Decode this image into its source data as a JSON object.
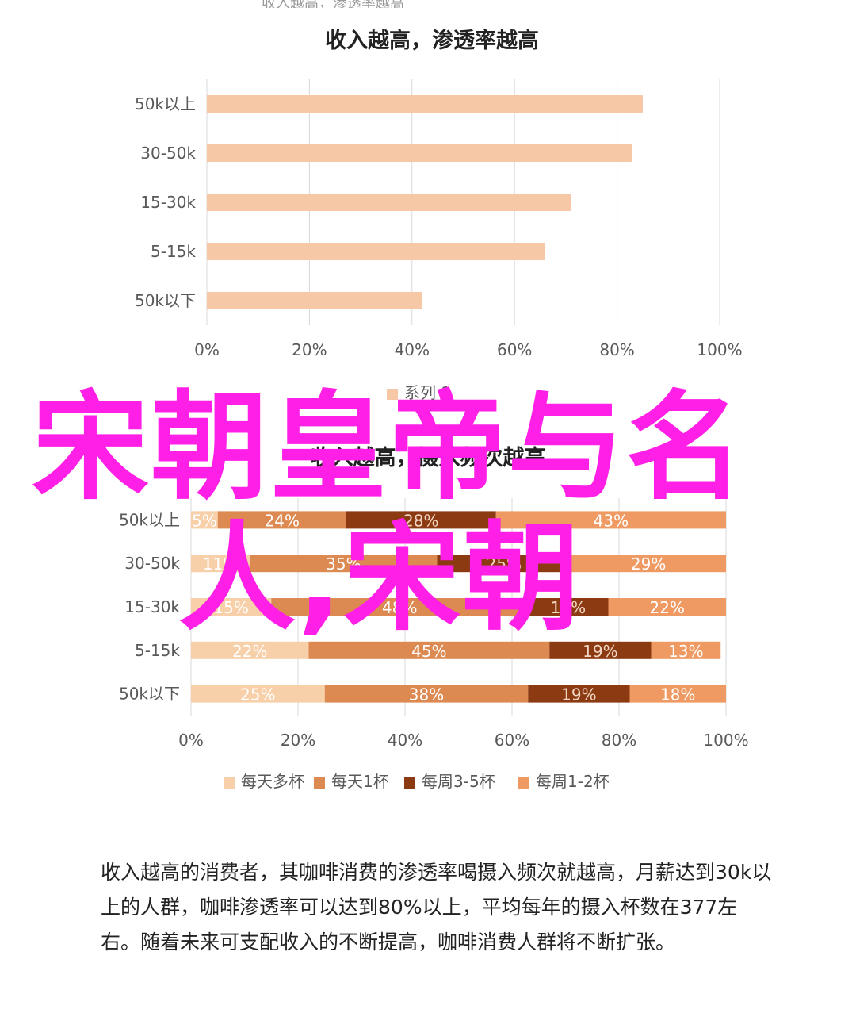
{
  "page": {
    "top_ghost_text": "收入越高，渗透率越高"
  },
  "colors": {
    "bar1": "#f6c8a6",
    "series": [
      "#f7cfa8",
      "#dc8a52",
      "#8b3a12",
      "#ef9a62"
    ],
    "grid": "#d9d9d9",
    "overlay": "#ff1fe6"
  },
  "overlay": {
    "line1": "宋朝皇帝与名",
    "line2": "人,宋朝"
  },
  "chart_data": [
    {
      "type": "bar",
      "orientation": "horizontal",
      "title": "收入越高，渗透率越高",
      "categories": [
        "50k以上",
        "30-50k",
        "15-30k",
        "5-15k",
        "50k以下"
      ],
      "series": [
        {
          "name": "系列 1",
          "values": [
            85,
            83,
            71,
            66,
            42
          ]
        }
      ],
      "xlim": [
        0,
        100
      ],
      "xticks": [
        "0%",
        "20%",
        "40%",
        "60%",
        "80%",
        "100%"
      ],
      "grid": true,
      "legend": "bottom"
    },
    {
      "type": "bar",
      "orientation": "horizontal",
      "stacked": "percent",
      "title": "收入越高，摄入频次越高",
      "categories": [
        "50k以上",
        "30-50k",
        "15-30k",
        "5-15k",
        "50k以下"
      ],
      "series": [
        {
          "name": "每天多杯",
          "values": [
            5,
            11,
            15,
            22,
            25
          ],
          "labels": [
            "5%",
            "11%",
            "15%",
            "22%",
            "25%"
          ]
        },
        {
          "name": "每天1杯",
          "values": [
            24,
            35,
            48,
            45,
            38
          ],
          "labels": [
            "24%",
            "35%",
            "48%",
            "45%",
            "38%"
          ]
        },
        {
          "name": "每周3-5杯",
          "values": [
            28,
            25,
            15,
            19,
            19
          ],
          "labels": [
            "28%",
            "25%",
            "15%",
            "19%",
            "19%"
          ]
        },
        {
          "name": "每周1-2杯",
          "values": [
            43,
            29,
            22,
            13,
            18
          ],
          "labels": [
            "43%",
            "29%",
            "22%",
            "13%",
            "18%"
          ]
        }
      ],
      "xlim": [
        0,
        100
      ],
      "xticks": [
        "0%",
        "20%",
        "40%",
        "60%",
        "80%",
        "100%"
      ],
      "grid": true,
      "legend": "bottom"
    }
  ],
  "article": {
    "paragraph": "收入越高的消费者，其咖啡消费的渗透率喝摄入频次就越高，月薪达到30k以上的人群，咖啡渗透率可以达到80%以上，平均每年的摄入杯数在377左右。随着未来可支配收入的不断提高，咖啡消费人群将不断扩张。"
  }
}
